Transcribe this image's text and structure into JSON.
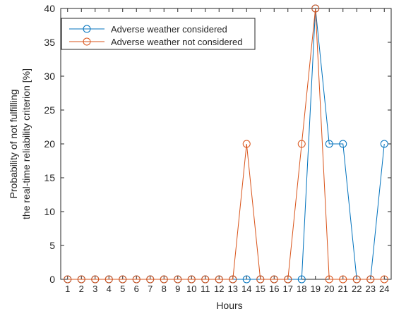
{
  "chart_data": {
    "type": "line",
    "title": "",
    "xlabel": "Hours",
    "ylabel_lines": [
      "Probability of not fulfilling",
      "the real-time reliability criterion [%]"
    ],
    "x": [
      1,
      2,
      3,
      4,
      5,
      6,
      7,
      8,
      9,
      10,
      11,
      12,
      13,
      14,
      15,
      16,
      17,
      18,
      19,
      20,
      21,
      22,
      23,
      24
    ],
    "xtick_labels": [
      "1",
      "2",
      "3",
      "4",
      "5",
      "6",
      "7",
      "8",
      "9",
      "10",
      "11",
      "12",
      "13",
      "14",
      "15",
      "16",
      "17",
      "18",
      "19",
      "20",
      "21",
      "22",
      "23",
      "24"
    ],
    "xlim": [
      0.5,
      24.5
    ],
    "ylim": [
      0,
      40
    ],
    "yticks": [
      0,
      5,
      10,
      15,
      20,
      25,
      30,
      35,
      40
    ],
    "ytick_labels": [
      "0",
      "5",
      "10",
      "15",
      "20",
      "25",
      "30",
      "35",
      "40"
    ],
    "grid": false,
    "legend_position": "top-left",
    "series": [
      {
        "name": "Adverse weather considered",
        "color": "#0072BD",
        "marker": "circle",
        "values": [
          0,
          0,
          0,
          0,
          0,
          0,
          0,
          0,
          0,
          0,
          0,
          0,
          0,
          0,
          0,
          0,
          0,
          0,
          40,
          20,
          20,
          0,
          0,
          20
        ]
      },
      {
        "name": "Adverse weather not considered",
        "color": "#D95319",
        "marker": "circle",
        "values": [
          0,
          0,
          0,
          0,
          0,
          0,
          0,
          0,
          0,
          0,
          0,
          0,
          0,
          20,
          0,
          0,
          0,
          20,
          40,
          0,
          0,
          0,
          0,
          0
        ]
      }
    ]
  }
}
